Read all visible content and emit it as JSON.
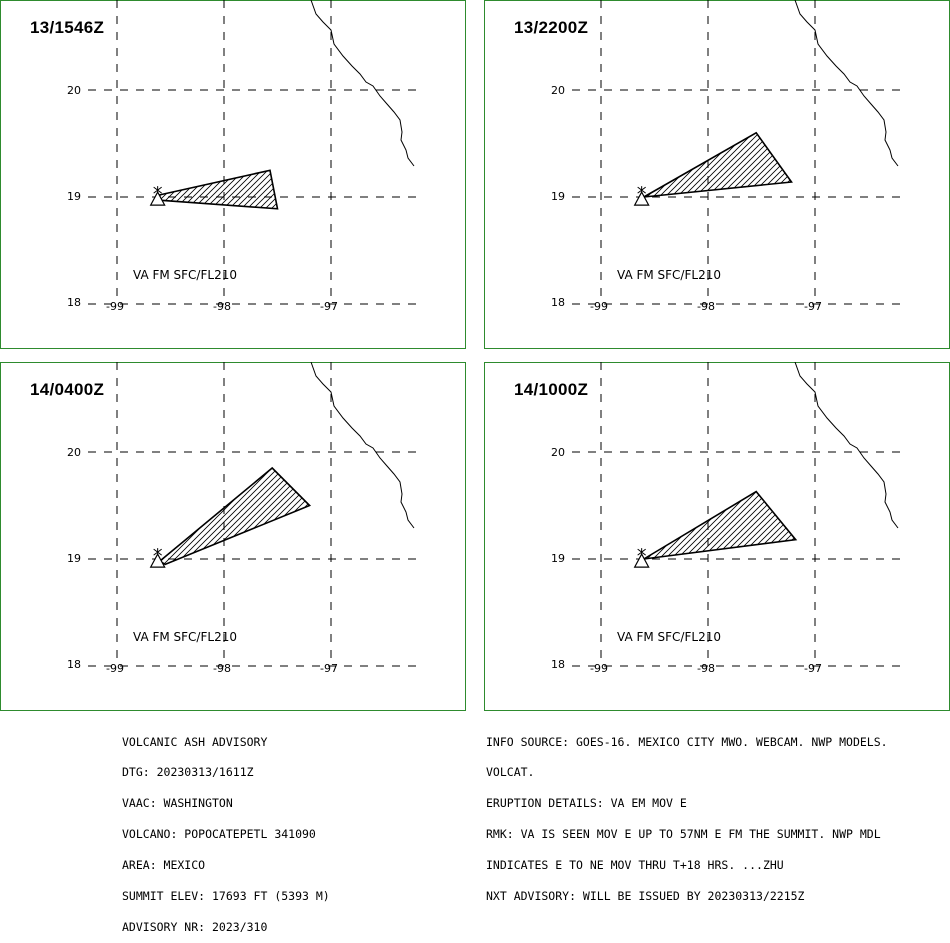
{
  "colors": {
    "frame": "#2e8b2e",
    "lines": "#000000",
    "background": "#ffffff"
  },
  "icons": {
    "volcano": "volcano-icon"
  },
  "axes": {
    "lat_labels": [
      "20",
      "19",
      "18"
    ],
    "lon_labels": [
      "-99",
      "-98",
      "-97"
    ]
  },
  "panels": [
    {
      "time": "13/1546Z",
      "label": "VA FM SFC/FL210",
      "polygon": [
        [
          -98.6,
          19.02
        ],
        [
          -97.57,
          19.25
        ],
        [
          -97.5,
          18.89
        ],
        [
          -98.6,
          18.97
        ]
      ]
    },
    {
      "time": "13/2200Z",
      "label": "VA FM SFC/FL210",
      "polygon": [
        [
          -98.6,
          19.0
        ],
        [
          -97.55,
          19.6
        ],
        [
          -97.22,
          19.14
        ],
        [
          -98.6,
          19.0
        ]
      ]
    },
    {
      "time": "14/0400Z",
      "label": "VA FM SFC/FL210",
      "polygon": [
        [
          -98.6,
          18.98
        ],
        [
          -97.55,
          19.85
        ],
        [
          -97.2,
          19.5
        ],
        [
          -98.55,
          18.95
        ]
      ]
    },
    {
      "time": "14/1000Z",
      "label": "VA FM SFC/FL210",
      "polygon": [
        [
          -98.6,
          19.0
        ],
        [
          -97.55,
          19.63
        ],
        [
          -97.18,
          19.18
        ],
        [
          -98.6,
          19.0
        ]
      ]
    }
  ],
  "advisory_left": [
    "VOLCANIC ASH ADVISORY",
    "DTG: 20230313/1611Z",
    "VAAC: WASHINGTON",
    "VOLCANO: POPOCATEPETL 341090",
    "AREA: MEXICO",
    "SUMMIT ELEV: 17693 FT (5393 M)",
    "ADVISORY NR: 2023/310"
  ],
  "advisory_right": [
    "INFO SOURCE: GOES-16. MEXICO CITY MWO. WEBCAM. NWP MODELS.",
    "VOLCAT.",
    "ERUPTION DETAILS: VA EM MOV E",
    "RMK: VA IS SEEN MOV E UP TO 57NM E FM THE SUMMIT. NWP MDL",
    "INDICATES E TO NE MOV THRU T+18 HRS. ...ZHU",
    "NXT ADVISORY: WILL BE ISSUED BY 20230313/2215Z"
  ]
}
